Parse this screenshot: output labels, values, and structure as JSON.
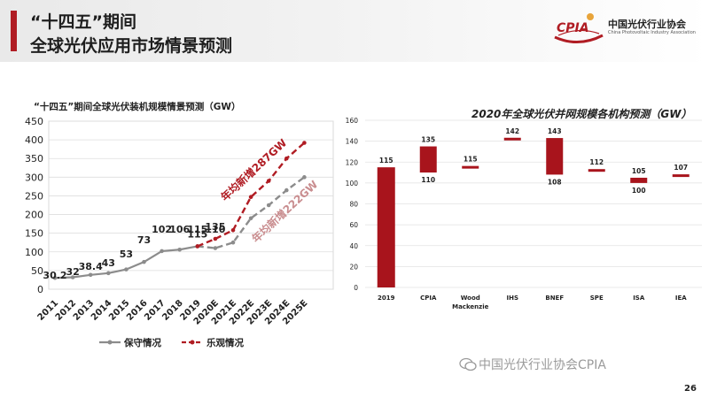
{
  "header": {
    "title_line1": "“十四五”期间",
    "title_line2": "全球光伏应用市场情景预测",
    "accent_color": "#b01c23"
  },
  "logo": {
    "mark_text": "CPIA",
    "name_cn": "中国光伏行业协会",
    "name_en": "China Photovoltaic Industry Association"
  },
  "watermark": "中国光伏行业协会CPIA",
  "page_number": "26",
  "chart_data": [
    {
      "type": "line",
      "title": "“十四五”期间全球光伏装机规模情景预测（GW）",
      "categories": [
        "2011",
        "2012",
        "2013",
        "2014",
        "2015",
        "2016",
        "2017",
        "2018",
        "2019",
        "2020E",
        "2021E",
        "2022E",
        "2023E",
        "2024E",
        "2025E"
      ],
      "ylim": [
        0,
        450
      ],
      "yticks": [
        "0",
        "50",
        "100",
        "150",
        "200",
        "250",
        "300",
        "350",
        "400",
        "450"
      ],
      "grid": true,
      "legend_position": "bottom",
      "series": [
        {
          "name": "保守情况",
          "color": "#8c8c8c",
          "values": [
            30.2,
            32,
            38.4,
            43,
            53,
            73,
            102,
            106,
            115,
            110,
            125,
            190,
            225,
            265,
            300
          ]
        },
        {
          "name": "乐观情况",
          "color": "#b01c23",
          "values": [
            null,
            null,
            null,
            null,
            null,
            null,
            null,
            null,
            115,
            135,
            158,
            247,
            290,
            350,
            392
          ]
        }
      ],
      "data_labels": [
        {
          "text": "30.2",
          "index": 0,
          "value": 30.2
        },
        {
          "text": "32",
          "index": 1,
          "value": 32
        },
        {
          "text": "38.4",
          "index": 2,
          "value": 38.4
        },
        {
          "text": "43",
          "index": 3,
          "value": 43
        },
        {
          "text": "53",
          "index": 4,
          "value": 53
        },
        {
          "text": "73",
          "index": 5,
          "value": 73
        },
        {
          "text": "102",
          "index": 6,
          "value": 102
        },
        {
          "text": "106",
          "index": 7,
          "value": 106
        },
        {
          "text": "115",
          "index": 8,
          "value": 115
        },
        {
          "text": "110",
          "index": 9,
          "value": 110
        },
        {
          "text": "115",
          "index": 8,
          "value": 115,
          "above": true
        },
        {
          "text": "135",
          "index": 9,
          "value": 135,
          "above": true
        }
      ],
      "annotations": [
        {
          "text": "年均新增287GW",
          "color": "#b01c23"
        },
        {
          "text": "年均新增222GW",
          "color": "#c98d8f"
        }
      ]
    },
    {
      "type": "bar",
      "title": "2020年全球光伏并网规模各机构预测（GW）",
      "categories": [
        "2019",
        "CPIA",
        "Wood Mackenzie",
        "IHS",
        "BNEF",
        "SPE",
        "ISA",
        "IEA"
      ],
      "ranges": [
        [
          0,
          115
        ],
        [
          110,
          135
        ],
        [
          115,
          115
        ],
        [
          142,
          142
        ],
        [
          108,
          143
        ],
        [
          112,
          112
        ],
        [
          100,
          105
        ],
        [
          107,
          107
        ]
      ],
      "labels_top": [
        "115",
        "135",
        "115",
        "142",
        "143",
        "112",
        "105",
        "107"
      ],
      "labels_bottom": [
        "",
        "110",
        "",
        "",
        "108",
        "",
        "100",
        ""
      ],
      "ylim": [
        0,
        160
      ],
      "yticks": [
        "0",
        "20",
        "40",
        "60",
        "80",
        "100",
        "120",
        "140",
        "160"
      ],
      "grid": true,
      "color": "#a8141c"
    }
  ]
}
